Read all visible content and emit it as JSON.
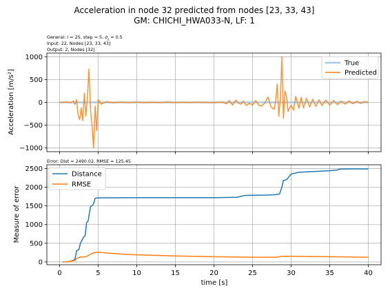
{
  "figure": {
    "title_line1": "Acceleration in node 32 predicted from nodes [23, 33, 43]",
    "title_line2": "GM: CHICHI_HWA033-N, LF: 1"
  },
  "top_panel": {
    "notes": [
      "General: l = 25, step = 5, σ_t = 0.5",
      "Input: 22, Nodes [23, 33, 43]",
      "Output: 2, Nodes [32]"
    ]
  },
  "bottom_panel": {
    "note": "Error: Dist = 2490.02, RMSE = 125.45"
  },
  "colors": {
    "blue": "#1f77b4",
    "orange": "#ff7f0e",
    "true_line": "#a6c8e4",
    "grid": "#b0b0b0"
  },
  "chart_data": [
    {
      "type": "line",
      "xlabel": "",
      "ylabel": "Acceleration [m/s²]",
      "xlim": [
        -1.65,
        41.65
      ],
      "ylim": [
        -1080,
        1080
      ],
      "grid": true,
      "legend_placement": "upper right",
      "x_ticks": [
        0,
        5,
        10,
        15,
        20,
        25,
        30,
        35,
        40
      ],
      "y_ticks": [
        -1000,
        -500,
        0,
        500,
        1000
      ],
      "y_tick_labels": [
        "−1000",
        "−500",
        "0",
        "500",
        "1000"
      ],
      "series": [
        {
          "name": "True",
          "color": "#a6c8e4",
          "x": [
            0,
            40
          ],
          "y": [
            0,
            0
          ]
        },
        {
          "name": "Predicted",
          "color": "#ff7f0e",
          "x": [
            0,
            1.0,
            1.4,
            1.8,
            2.0,
            2.2,
            2.4,
            2.6,
            2.8,
            3.0,
            3.2,
            3.4,
            3.6,
            3.8,
            4.0,
            4.2,
            4.4,
            4.6,
            4.8,
            5.0,
            5.4,
            6.0,
            7.0,
            8.0,
            9.0,
            10.0,
            11.0,
            12.0,
            13.0,
            14.0,
            15.0,
            16.0,
            17.0,
            18.0,
            19.0,
            20.0,
            21.0,
            21.6,
            22.0,
            22.4,
            22.8,
            23.2,
            23.5,
            23.8,
            24.2,
            24.6,
            25.0,
            25.4,
            25.8,
            26.2,
            26.6,
            27.0,
            27.4,
            27.8,
            28.0,
            28.2,
            28.4,
            28.6,
            28.8,
            29.0,
            29.2,
            29.4,
            29.6,
            29.8,
            30.0,
            30.3,
            30.6,
            31.0,
            31.3,
            31.6,
            32.0,
            32.4,
            32.8,
            33.2,
            33.6,
            34.0,
            34.5,
            35.0,
            35.5,
            36.0,
            36.5,
            37.0,
            37.5,
            38.0,
            38.5,
            39.0,
            39.5,
            40.0
          ],
          "y": [
            0,
            8,
            -10,
            30,
            -50,
            60,
            -280,
            -380,
            -120,
            -400,
            200,
            -300,
            100,
            730,
            -150,
            -500,
            -1000,
            -80,
            -620,
            60,
            -40,
            15,
            -10,
            8,
            -5,
            6,
            -6,
            4,
            -5,
            5,
            -5,
            4,
            -4,
            5,
            -3,
            -5,
            8,
            -30,
            40,
            -60,
            50,
            -20,
            -40,
            30,
            -70,
            -20,
            -60,
            40,
            -60,
            -80,
            -10,
            120,
            -100,
            -150,
            40,
            400,
            -300,
            60,
            1000,
            -350,
            250,
            130,
            -200,
            -120,
            -60,
            -170,
            130,
            -130,
            110,
            -120,
            90,
            -100,
            70,
            -90,
            60,
            -70,
            50,
            -60,
            40,
            -50,
            30,
            -40,
            30,
            -30,
            25,
            -25,
            20,
            0
          ]
        }
      ]
    },
    {
      "type": "line",
      "xlabel": "time [s]",
      "ylabel": "Measure of error",
      "xlim": [
        -1.65,
        41.65
      ],
      "ylim": [
        -75,
        2600
      ],
      "grid": true,
      "legend_placement": "upper left",
      "x_ticks": [
        0,
        5,
        10,
        15,
        20,
        25,
        30,
        35,
        40
      ],
      "y_ticks": [
        0,
        500,
        1000,
        1500,
        2000,
        2500
      ],
      "series": [
        {
          "name": "Distance",
          "color": "#1f77b4",
          "x": [
            0.4,
            1.0,
            1.4,
            1.8,
            2.0,
            2.2,
            2.5,
            2.7,
            2.9,
            3.1,
            3.3,
            3.5,
            3.7,
            4.0,
            4.2,
            4.4,
            4.6,
            4.8,
            5.0,
            10.0,
            15.0,
            20.0,
            22.0,
            23.0,
            24.0,
            27.0,
            28.0,
            28.5,
            28.8,
            29.0,
            29.4,
            30.0,
            31.0,
            33.0,
            35.0,
            36.0,
            36.3,
            38.0,
            40.0
          ],
          "y": [
            0,
            5,
            20,
            45,
            80,
            300,
            330,
            500,
            580,
            660,
            700,
            1050,
            1100,
            1480,
            1500,
            1560,
            1700,
            1710,
            1715,
            1720,
            1720,
            1720,
            1725,
            1730,
            1780,
            1790,
            1800,
            1820,
            2000,
            2180,
            2200,
            2350,
            2400,
            2420,
            2440,
            2460,
            2485,
            2490,
            2490
          ]
        },
        {
          "name": "RMSE",
          "color": "#ff7f0e",
          "x": [
            0.4,
            1.0,
            2.0,
            2.2,
            2.6,
            3.0,
            3.4,
            3.6,
            4.0,
            4.2,
            4.6,
            5.0,
            6.0,
            8.0,
            10.0,
            15.0,
            20.0,
            25.0,
            28.0,
            28.8,
            30.0,
            35.0,
            40.0
          ],
          "y": [
            0,
            5,
            40,
            90,
            130,
            130,
            140,
            160,
            200,
            230,
            250,
            260,
            240,
            210,
            190,
            160,
            140,
            125,
            125,
            150,
            150,
            140,
            125
          ]
        }
      ]
    }
  ]
}
